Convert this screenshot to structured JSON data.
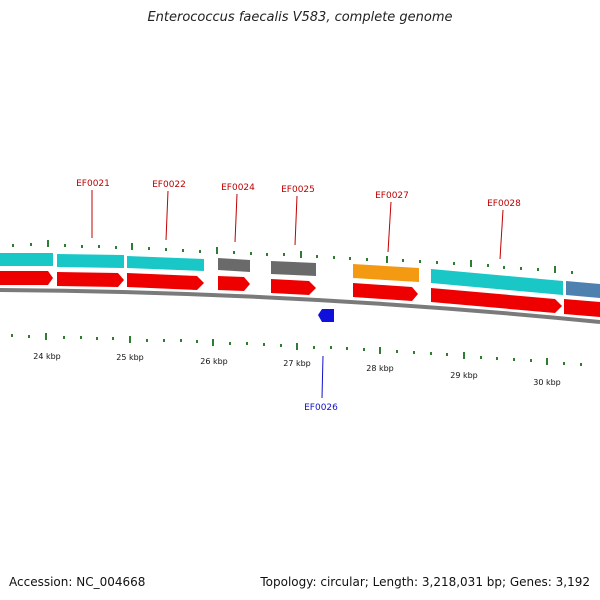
{
  "title": "Enterococcus faecalis V583, complete genome",
  "footer": {
    "accession": "Accession: NC_004668",
    "summary": "Topology: circular; Length: 3,218,031 bp; Genes: 3,192"
  },
  "colors": {
    "backbone": "#808080",
    "tick": "#2e7d32",
    "red": "#ee0000",
    "cyan": "#19c7c7",
    "grey": "#6a6a6a",
    "orange": "#f39a12",
    "steel": "#4f81b0",
    "blue": "#1010dd",
    "label_red": "#c00000",
    "label_blue": "#1010cc"
  },
  "scale_labels": [
    "24 kbp",
    "25 kbp",
    "26 kbp",
    "27 kbp",
    "28 kbp",
    "29 kbp",
    "30 kbp"
  ],
  "gene_labels": [
    {
      "text": "EF0021",
      "strand": "forward",
      "color": "red"
    },
    {
      "text": "EF0022",
      "strand": "forward",
      "color": "red"
    },
    {
      "text": "EF0024",
      "strand": "forward",
      "color": "red"
    },
    {
      "text": "EF0025",
      "strand": "forward",
      "color": "red"
    },
    {
      "text": "EF0027",
      "strand": "forward",
      "color": "red"
    },
    {
      "text": "EF0028",
      "strand": "forward",
      "color": "red"
    },
    {
      "text": "EF0026",
      "strand": "reverse",
      "color": "blue"
    }
  ]
}
